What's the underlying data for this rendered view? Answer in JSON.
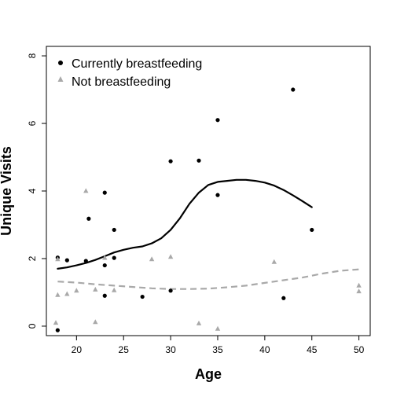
{
  "chart_data": {
    "type": "scatter",
    "xlabel": "Age",
    "ylabel": "Unique Visits",
    "xlim": [
      16.8,
      51.2
    ],
    "ylim": [
      -0.28,
      8.28
    ],
    "x_ticks": [
      20,
      25,
      30,
      35,
      40,
      45,
      50
    ],
    "y_ticks": [
      0,
      2,
      4,
      6,
      8
    ],
    "legend_position": "top-left",
    "series": [
      {
        "name": "Currently breastfeeding",
        "marker": "circle",
        "color": "#000000",
        "points": [
          {
            "x": 18,
            "y": 2.03
          },
          {
            "x": 18,
            "y": -0.12
          },
          {
            "x": 19,
            "y": 1.95
          },
          {
            "x": 21,
            "y": 1.93
          },
          {
            "x": 21.3,
            "y": 3.18
          },
          {
            "x": 23,
            "y": 3.95
          },
          {
            "x": 23,
            "y": 1.8
          },
          {
            "x": 23,
            "y": 0.9
          },
          {
            "x": 24,
            "y": 2.85
          },
          {
            "x": 24,
            "y": 2.02
          },
          {
            "x": 27,
            "y": 0.87
          },
          {
            "x": 30,
            "y": 4.88
          },
          {
            "x": 30,
            "y": 1.05
          },
          {
            "x": 33,
            "y": 4.9
          },
          {
            "x": 35,
            "y": 6.1
          },
          {
            "x": 35,
            "y": 3.88
          },
          {
            "x": 42,
            "y": 0.83
          },
          {
            "x": 43,
            "y": 7.0
          },
          {
            "x": 45,
            "y": 2.85
          }
        ],
        "smooth": [
          {
            "x": 18,
            "y": 1.7
          },
          {
            "x": 19,
            "y": 1.74
          },
          {
            "x": 20,
            "y": 1.8
          },
          {
            "x": 21,
            "y": 1.87
          },
          {
            "x": 22,
            "y": 1.96
          },
          {
            "x": 23,
            "y": 2.07
          },
          {
            "x": 24,
            "y": 2.18
          },
          {
            "x": 25,
            "y": 2.26
          },
          {
            "x": 26,
            "y": 2.32
          },
          {
            "x": 27,
            "y": 2.36
          },
          {
            "x": 28,
            "y": 2.45
          },
          {
            "x": 29,
            "y": 2.6
          },
          {
            "x": 30,
            "y": 2.85
          },
          {
            "x": 31,
            "y": 3.2
          },
          {
            "x": 32,
            "y": 3.62
          },
          {
            "x": 33,
            "y": 3.95
          },
          {
            "x": 34,
            "y": 4.18
          },
          {
            "x": 35,
            "y": 4.27
          },
          {
            "x": 36,
            "y": 4.3
          },
          {
            "x": 37,
            "y": 4.33
          },
          {
            "x": 38,
            "y": 4.33
          },
          {
            "x": 39,
            "y": 4.3
          },
          {
            "x": 40,
            "y": 4.25
          },
          {
            "x": 41,
            "y": 4.16
          },
          {
            "x": 42,
            "y": 4.03
          },
          {
            "x": 43,
            "y": 3.87
          },
          {
            "x": 44,
            "y": 3.7
          },
          {
            "x": 45,
            "y": 3.52
          }
        ]
      },
      {
        "name": "Not breastfeeding",
        "marker": "triangle",
        "color": "#a9a9a9",
        "points": [
          {
            "x": 17.8,
            "y": 0.1
          },
          {
            "x": 18,
            "y": 1.98
          },
          {
            "x": 18,
            "y": 0.92
          },
          {
            "x": 19,
            "y": 0.95
          },
          {
            "x": 20,
            "y": 1.05
          },
          {
            "x": 21,
            "y": 4.0
          },
          {
            "x": 22,
            "y": 1.08
          },
          {
            "x": 22,
            "y": 0.12
          },
          {
            "x": 23,
            "y": 2.02
          },
          {
            "x": 24,
            "y": 1.06
          },
          {
            "x": 28,
            "y": 1.98
          },
          {
            "x": 30,
            "y": 2.05
          },
          {
            "x": 33,
            "y": 0.08
          },
          {
            "x": 35,
            "y": -0.08
          },
          {
            "x": 41,
            "y": 1.9
          },
          {
            "x": 50,
            "y": 1.2
          },
          {
            "x": 50,
            "y": 1.03
          }
        ],
        "smooth": [
          {
            "x": 18,
            "y": 1.32
          },
          {
            "x": 20,
            "y": 1.29
          },
          {
            "x": 22,
            "y": 1.24
          },
          {
            "x": 24,
            "y": 1.2
          },
          {
            "x": 26,
            "y": 1.16
          },
          {
            "x": 28,
            "y": 1.12
          },
          {
            "x": 30,
            "y": 1.1
          },
          {
            "x": 32,
            "y": 1.1
          },
          {
            "x": 34,
            "y": 1.11
          },
          {
            "x": 36,
            "y": 1.15
          },
          {
            "x": 38,
            "y": 1.2
          },
          {
            "x": 40,
            "y": 1.28
          },
          {
            "x": 42,
            "y": 1.36
          },
          {
            "x": 44,
            "y": 1.44
          },
          {
            "x": 46,
            "y": 1.55
          },
          {
            "x": 48,
            "y": 1.64
          },
          {
            "x": 50,
            "y": 1.68
          }
        ]
      }
    ]
  }
}
